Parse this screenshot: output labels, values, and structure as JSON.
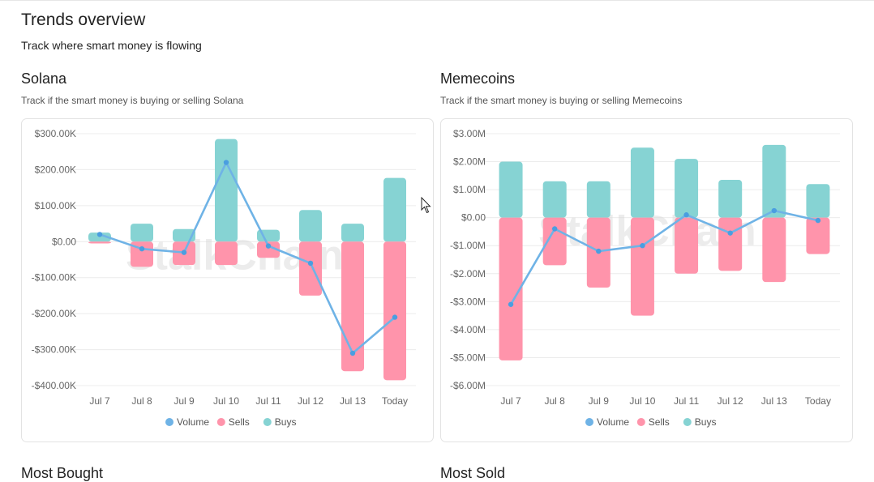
{
  "page": {
    "title": "Trends overview",
    "subtitle": "Track where smart money is flowing"
  },
  "sections": [
    {
      "title": "Solana",
      "subtitle": "Track if the smart money is buying or selling Solana"
    },
    {
      "title": "Memecoins",
      "subtitle": "Track if the smart money is buying or selling Memecoins"
    }
  ],
  "bottom": {
    "left_title": "Most Bought",
    "right_title": "Most Sold"
  },
  "watermark": "StalkChain",
  "colors": {
    "buys": "#86d3d3",
    "sells": "#ff94ab",
    "volume": "#6fb3e6"
  },
  "chart_data": [
    {
      "type": "bar",
      "stacked": true,
      "categories": [
        "Jul 7",
        "Jul 8",
        "Jul 9",
        "Jul 10",
        "Jul 11",
        "Jul 12",
        "Jul 13",
        "Today"
      ],
      "series": [
        {
          "name": "Volume",
          "type": "line",
          "values": [
            20000,
            -20000,
            -30000,
            220000,
            -12000,
            -60000,
            -310000,
            -210000
          ]
        },
        {
          "name": "Sells",
          "type": "bar",
          "values": [
            -5000,
            -70000,
            -65000,
            -65000,
            -45000,
            -150000,
            -360000,
            -385000
          ]
        },
        {
          "name": "Buys",
          "type": "bar",
          "values": [
            25000,
            50000,
            35000,
            285000,
            33000,
            88000,
            50000,
            177000
          ]
        }
      ],
      "ylim": [
        -400000,
        300000
      ],
      "yticks": [
        300000,
        200000,
        100000,
        0,
        -100000,
        -200000,
        -300000,
        -400000
      ],
      "ytick_labels": [
        "$300.00K",
        "$200.00K",
        "$100.00K",
        "$0.00",
        "-$100.00K",
        "-$200.00K",
        "-$300.00K",
        "-$400.00K"
      ],
      "legend": [
        "Volume",
        "Sells",
        "Buys"
      ],
      "legend_position": "bottom",
      "grid": true
    },
    {
      "type": "bar",
      "stacked": true,
      "categories": [
        "Jul 7",
        "Jul 8",
        "Jul 9",
        "Jul 10",
        "Jul 11",
        "Jul 12",
        "Jul 13",
        "Today"
      ],
      "series": [
        {
          "name": "Volume",
          "type": "line",
          "values": [
            -3100000,
            -400000,
            -1200000,
            -1000000,
            100000,
            -550000,
            250000,
            -100000
          ]
        },
        {
          "name": "Sells",
          "type": "bar",
          "values": [
            -5100000,
            -1700000,
            -2500000,
            -3500000,
            -2000000,
            -1900000,
            -2300000,
            -1300000
          ]
        },
        {
          "name": "Buys",
          "type": "bar",
          "values": [
            2000000,
            1300000,
            1300000,
            2500000,
            2100000,
            1350000,
            2600000,
            1200000
          ]
        }
      ],
      "ylim": [
        -6000000,
        3000000
      ],
      "yticks": [
        3000000,
        2000000,
        1000000,
        0,
        -1000000,
        -2000000,
        -3000000,
        -4000000,
        -5000000,
        -6000000
      ],
      "ytick_labels": [
        "$3.00M",
        "$2.00M",
        "$1.00M",
        "$0.00",
        "-$1.00M",
        "-$2.00M",
        "-$3.00M",
        "-$4.00M",
        "-$5.00M",
        "-$6.00M"
      ],
      "legend": [
        "Volume",
        "Sells",
        "Buys"
      ],
      "legend_position": "bottom",
      "grid": true
    }
  ]
}
